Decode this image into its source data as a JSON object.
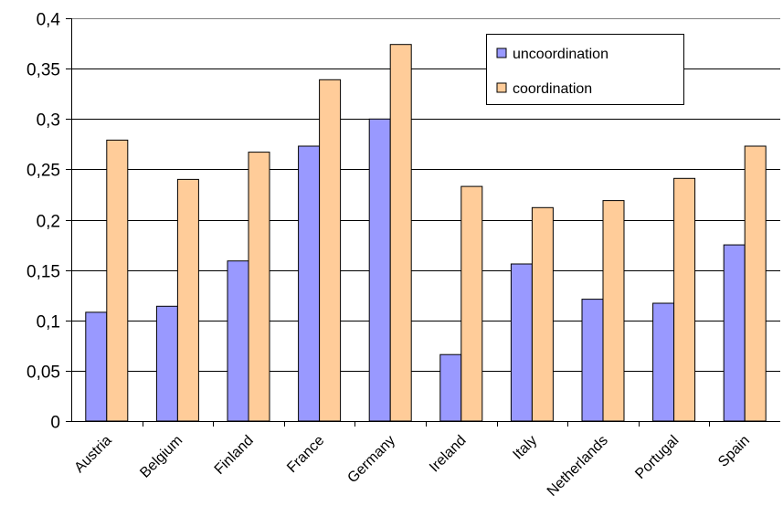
{
  "chart_data": {
    "type": "bar",
    "categories": [
      "Austria",
      "Belgium",
      "Finland",
      "France",
      "Germany",
      "Ireland",
      "Italy",
      "Netherlands",
      "Portugal",
      "Spain"
    ],
    "series": [
      {
        "name": "uncoordination",
        "color": "#9999ff",
        "values": [
          0.108,
          0.114,
          0.159,
          0.273,
          0.3,
          0.066,
          0.156,
          0.121,
          0.117,
          0.175
        ]
      },
      {
        "name": "coordination",
        "color": "#ffcc99",
        "values": [
          0.279,
          0.24,
          0.267,
          0.339,
          0.374,
          0.233,
          0.212,
          0.219,
          0.241,
          0.273
        ]
      }
    ],
    "ylim": [
      0,
      0.4
    ],
    "yticks": [
      0,
      0.05,
      0.1,
      0.15,
      0.2,
      0.25,
      0.3,
      0.35,
      0.4
    ],
    "ytick_labels": [
      "0",
      "0,05",
      "0,1",
      "0,15",
      "0,2",
      "0,25",
      "0,3",
      "0,35",
      "0,4"
    ],
    "grid": true,
    "legend_position": "top-right",
    "title": "",
    "xlabel": "",
    "ylabel": ""
  }
}
